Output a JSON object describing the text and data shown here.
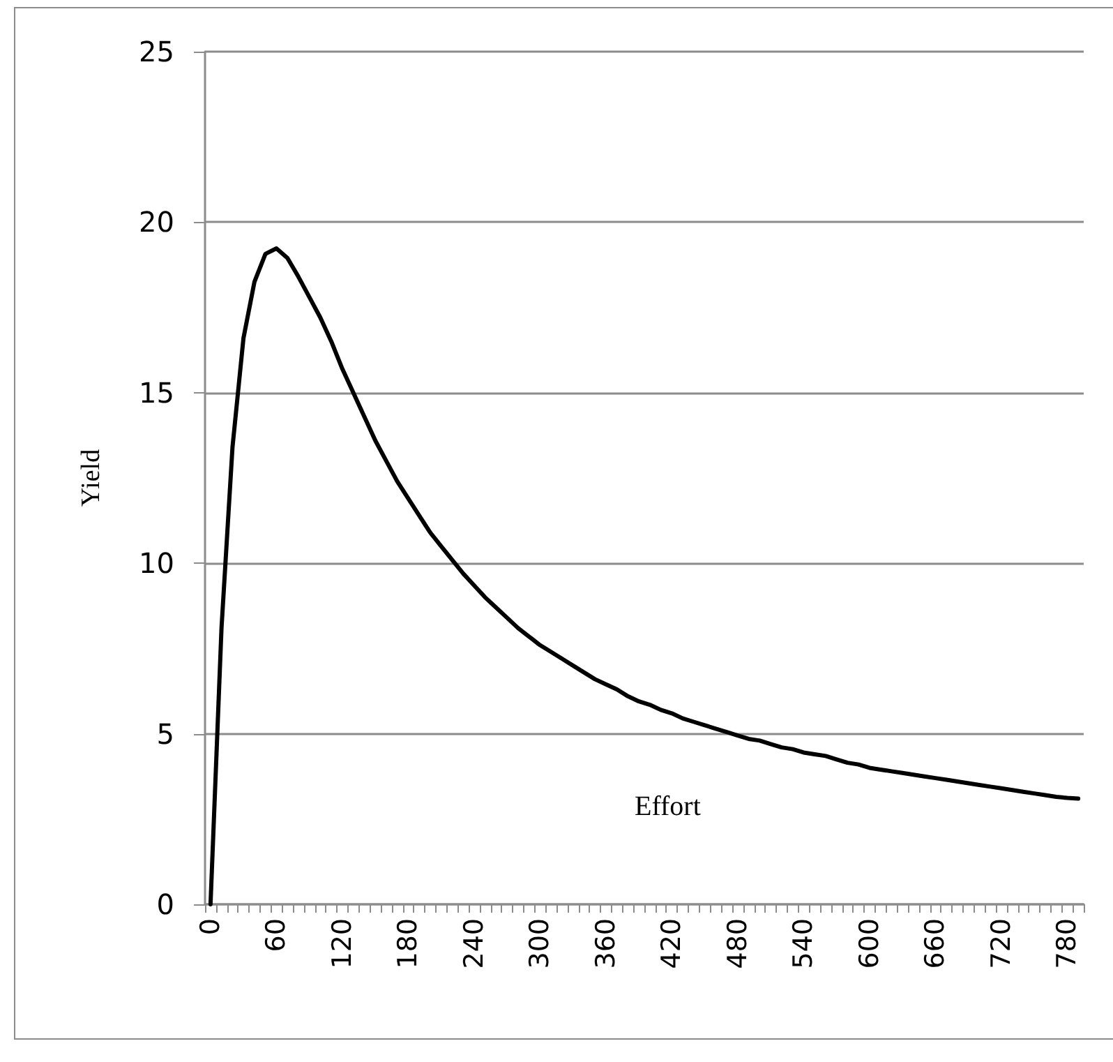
{
  "chart_data": {
    "type": "line",
    "xlabel": "Effort",
    "ylabel": "Yield",
    "categories": [
      "0",
      null,
      null,
      null,
      null,
      null,
      "60",
      null,
      null,
      null,
      null,
      null,
      "120",
      null,
      null,
      null,
      null,
      null,
      "180",
      null,
      null,
      null,
      null,
      null,
      "240",
      null,
      null,
      null,
      null,
      null,
      "300",
      null,
      null,
      null,
      null,
      null,
      "360",
      null,
      null,
      null,
      null,
      null,
      "420",
      null,
      null,
      null,
      null,
      null,
      "480",
      null,
      null,
      null,
      null,
      null,
      "540",
      null,
      null,
      null,
      null,
      null,
      "600",
      null,
      null,
      null,
      null,
      null,
      "660",
      null,
      null,
      null,
      null,
      null,
      "720",
      null,
      null,
      null,
      null,
      null,
      "780",
      null
    ],
    "series": [
      {
        "color": "#000000",
        "values": [
          0,
          8.1,
          13.4,
          16.6,
          18.25,
          19.07,
          19.23,
          18.95,
          18.4,
          17.8,
          17.2,
          16.5,
          15.7,
          15.0,
          14.3,
          13.6,
          13.0,
          12.4,
          11.9,
          11.4,
          10.9,
          10.5,
          10.1,
          9.7,
          9.35,
          9.0,
          8.7,
          8.4,
          8.1,
          7.85,
          7.6,
          7.4,
          7.2,
          7.0,
          6.8,
          6.6,
          6.45,
          6.3,
          6.1,
          5.95,
          5.85,
          5.7,
          5.6,
          5.45,
          5.35,
          5.25,
          5.15,
          5.05,
          4.95,
          4.85,
          4.8,
          4.7,
          4.6,
          4.55,
          4.45,
          4.4,
          4.35,
          4.25,
          4.15,
          4.1,
          4.0,
          3.95,
          3.9,
          3.85,
          3.8,
          3.75,
          3.7,
          3.65,
          3.6,
          3.55,
          3.5,
          3.45,
          3.4,
          3.35,
          3.3,
          3.25,
          3.2,
          3.15,
          3.12,
          3.1
        ]
      }
    ],
    "ylim": [
      0,
      25
    ],
    "yticks": [
      0,
      5,
      10,
      15,
      20,
      25
    ],
    "grid": "y",
    "marker": "none",
    "line_style": "solid"
  }
}
